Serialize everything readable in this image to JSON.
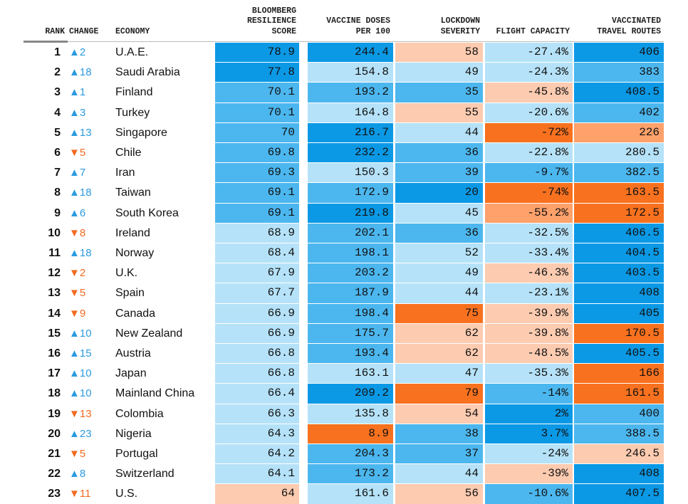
{
  "table": {
    "header": [
      [
        "RANK"
      ],
      [
        "CHANGE"
      ],
      [
        "ECONOMY"
      ],
      [
        "BLOOMBERG",
        "RESILIENCE",
        "SCORE"
      ],
      [
        "VACCINE DOSES",
        "PER 100"
      ],
      [
        "LOCKDOWN",
        "SEVERITY"
      ],
      [
        "FLIGHT CAPACITY"
      ],
      [
        "VACCINATED",
        "TRAVEL ROUTES"
      ]
    ],
    "rows": [
      [
        "1",
        "▲2",
        "U.A.E.",
        "78.9",
        "244.4",
        "58",
        "-27.4%",
        "406"
      ],
      [
        "2",
        "▲18",
        "Saudi Arabia",
        "77.8",
        "154.8",
        "49",
        "-24.3%",
        "383"
      ],
      [
        "3",
        "▲1",
        "Finland",
        "70.1",
        "193.2",
        "35",
        "-45.8%",
        "408.5"
      ],
      [
        "4",
        "▲3",
        "Turkey",
        "70.1",
        "164.8",
        "55",
        "-20.6%",
        "402"
      ],
      [
        "5",
        "▲13",
        "Singapore",
        "70",
        "216.7",
        "44",
        "-72%",
        "226"
      ],
      [
        "6",
        "▼5",
        "Chile",
        "69.8",
        "232.2",
        "36",
        "-22.8%",
        "280.5"
      ],
      [
        "7",
        "▲7",
        "Iran",
        "69.3",
        "150.3",
        "39",
        "-9.7%",
        "382.5"
      ],
      [
        "8",
        "▲18",
        "Taiwan",
        "69.1",
        "172.9",
        "20",
        "-74%",
        "163.5"
      ],
      [
        "9",
        "▲6",
        "South Korea",
        "69.1",
        "219.8",
        "45",
        "-55.2%",
        "172.5"
      ],
      [
        "10",
        "▼8",
        "Ireland",
        "68.9",
        "202.1",
        "36",
        "-32.5%",
        "406.5"
      ],
      [
        "11",
        "▲18",
        "Norway",
        "68.4",
        "198.1",
        "52",
        "-33.4%",
        "404.5"
      ],
      [
        "12",
        "▼2",
        "U.K.",
        "67.9",
        "203.2",
        "49",
        "-46.3%",
        "403.5"
      ],
      [
        "13",
        "▼5",
        "Spain",
        "67.7",
        "187.9",
        "44",
        "-23.1%",
        "408"
      ],
      [
        "14",
        "▼9",
        "Canada",
        "66.9",
        "198.4",
        "75",
        "-39.9%",
        "405"
      ],
      [
        "15",
        "▲10",
        "New Zealand",
        "66.9",
        "175.7",
        "62",
        "-39.8%",
        "170.5"
      ],
      [
        "16",
        "▲15",
        "Austria",
        "66.8",
        "193.4",
        "62",
        "-48.5%",
        "405.5"
      ],
      [
        "17",
        "▲10",
        "Japan",
        "66.8",
        "163.1",
        "47",
        "-35.3%",
        "166"
      ],
      [
        "18",
        "▲10",
        "Mainland China",
        "66.4",
        "209.2",
        "79",
        "-14%",
        "161.5"
      ],
      [
        "19",
        "▼13",
        "Colombia",
        "66.3",
        "135.8",
        "54",
        "2%",
        "400"
      ],
      [
        "20",
        "▲23",
        "Nigeria",
        "64.3",
        "8.9",
        "38",
        "3.7%",
        "388.5"
      ],
      [
        "21",
        "▼5",
        "Portugal",
        "64.2",
        "204.3",
        "37",
        "-24%",
        "246.5"
      ],
      [
        "22",
        "▲8",
        "Switzerland",
        "64.1",
        "173.2",
        "44",
        "-39%",
        "408"
      ],
      [
        "23",
        "▼11",
        "U.S.",
        "64",
        "161.6",
        "56",
        "-10.6%",
        "407.5"
      ]
    ],
    "cell_colors": [
      [
        "#0b99e6",
        "#0b99e6",
        "#fdcbb0",
        "#b5e2f8",
        "#0b99e6"
      ],
      [
        "#0b99e6",
        "#b5e2f8",
        "#b5e2f8",
        "#b5e2f8",
        "#4cb7ef"
      ],
      [
        "#4cb7ef",
        "#4cb7ef",
        "#4cb7ef",
        "#fdcbb0",
        "#0b99e6"
      ],
      [
        "#4cb7ef",
        "#b5e2f8",
        "#fdcbb0",
        "#b5e2f8",
        "#4cb7ef"
      ],
      [
        "#4cb7ef",
        "#0b99e6",
        "#b5e2f8",
        "#f8711f",
        "#fea16b"
      ],
      [
        "#4cb7ef",
        "#0b99e6",
        "#4cb7ef",
        "#b5e2f8",
        "#b5e2f8"
      ],
      [
        "#4cb7ef",
        "#b5e2f8",
        "#4cb7ef",
        "#4cb7ef",
        "#4cb7ef"
      ],
      [
        "#4cb7ef",
        "#4cb7ef",
        "#0b99e6",
        "#f8711f",
        "#f8711f"
      ],
      [
        "#4cb7ef",
        "#0b99e6",
        "#b5e2f8",
        "#fea16b",
        "#f8711f"
      ],
      [
        "#b5e2f8",
        "#4cb7ef",
        "#4cb7ef",
        "#b5e2f8",
        "#0b99e6"
      ],
      [
        "#b5e2f8",
        "#4cb7ef",
        "#b5e2f8",
        "#b5e2f8",
        "#0b99e6"
      ],
      [
        "#b5e2f8",
        "#4cb7ef",
        "#b5e2f8",
        "#fdcbb0",
        "#0b99e6"
      ],
      [
        "#b5e2f8",
        "#4cb7ef",
        "#b5e2f8",
        "#b5e2f8",
        "#0b99e6"
      ],
      [
        "#b5e2f8",
        "#4cb7ef",
        "#f8711f",
        "#fdcbb0",
        "#0b99e6"
      ],
      [
        "#b5e2f8",
        "#4cb7ef",
        "#fdcbb0",
        "#fdcbb0",
        "#f8711f"
      ],
      [
        "#b5e2f8",
        "#4cb7ef",
        "#fdcbb0",
        "#fdcbb0",
        "#0b99e6"
      ],
      [
        "#b5e2f8",
        "#b5e2f8",
        "#b5e2f8",
        "#b5e2f8",
        "#f8711f"
      ],
      [
        "#b5e2f8",
        "#0b99e6",
        "#f8711f",
        "#4cb7ef",
        "#f8711f"
      ],
      [
        "#b5e2f8",
        "#b5e2f8",
        "#fdcbb0",
        "#0b99e6",
        "#4cb7ef"
      ],
      [
        "#b5e2f8",
        "#f8711f",
        "#4cb7ef",
        "#0b99e6",
        "#4cb7ef"
      ],
      [
        "#b5e2f8",
        "#4cb7ef",
        "#4cb7ef",
        "#b5e2f8",
        "#fdcbb0"
      ],
      [
        "#b5e2f8",
        "#4cb7ef",
        "#b5e2f8",
        "#fdcbb0",
        "#0b99e6"
      ],
      [
        "#fdcbb0",
        "#b5e2f8",
        "#fdcbb0",
        "#4cb7ef",
        "#0b99e6"
      ]
    ]
  }
}
